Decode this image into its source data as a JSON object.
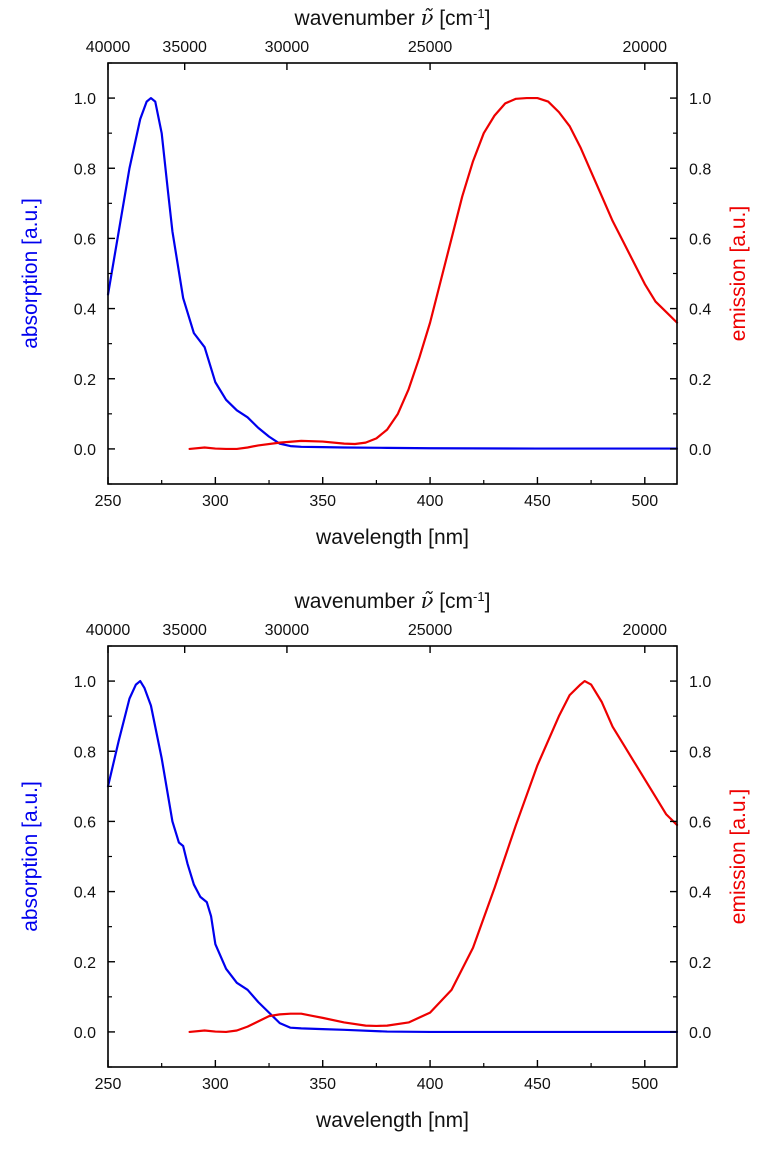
{
  "colors": {
    "absorption": "#0000ee",
    "emission": "#ee0000",
    "axis": "#000000",
    "text": "#111111"
  },
  "chart_data": [
    {
      "type": "line",
      "x_axis": {
        "label": "wavelength [nm]",
        "range": [
          250,
          515
        ],
        "ticks": [
          250,
          300,
          350,
          400,
          450,
          500
        ],
        "tick_labels": [
          "250",
          "300",
          "350",
          "400",
          "450",
          "500"
        ]
      },
      "top_axis": {
        "label_main": "wavenumber ",
        "label_symbol": "ν̃",
        "label_unit": " [cm",
        "label_exp": "-1",
        "label_close": "]",
        "ticks": [
          40000,
          35000,
          30000,
          25000,
          20000
        ],
        "tick_labels": [
          "40000",
          "35000",
          "30000",
          "25000",
          "20000"
        ]
      },
      "y_left": {
        "label": "absorption [a.u.]",
        "range": [
          -0.1,
          1.1
        ],
        "ticks": [
          0.0,
          0.2,
          0.4,
          0.6,
          0.8,
          1.0
        ],
        "tick_labels": [
          "0.0",
          "0.2",
          "0.4",
          "0.6",
          "0.8",
          "1.0"
        ]
      },
      "y_right": {
        "label": "emission [a.u.]",
        "range": [
          -0.1,
          1.1
        ],
        "ticks": [
          0.0,
          0.2,
          0.4,
          0.6,
          0.8,
          1.0
        ],
        "tick_labels": [
          "0.0",
          "0.2",
          "0.4",
          "0.6",
          "0.8",
          "1.0"
        ]
      },
      "series": [
        {
          "name": "absorption",
          "color": "#0000ee",
          "x": [
            250,
            255,
            260,
            265,
            268,
            270,
            272,
            275,
            278,
            280,
            285,
            290,
            295,
            300,
            305,
            310,
            315,
            320,
            325,
            330,
            335,
            340,
            350,
            360,
            380,
            400,
            450,
            500,
            515
          ],
          "y": [
            0.44,
            0.62,
            0.8,
            0.94,
            0.99,
            1.0,
            0.99,
            0.9,
            0.73,
            0.62,
            0.43,
            0.33,
            0.29,
            0.19,
            0.14,
            0.11,
            0.09,
            0.06,
            0.035,
            0.015,
            0.008,
            0.006,
            0.005,
            0.004,
            0.003,
            0.002,
            0.001,
            0.001,
            0.001
          ]
        },
        {
          "name": "emission",
          "color": "#ee0000",
          "x": [
            288,
            295,
            300,
            305,
            310,
            315,
            320,
            330,
            340,
            350,
            360,
            365,
            370,
            375,
            380,
            385,
            390,
            395,
            400,
            405,
            410,
            415,
            420,
            425,
            430,
            435,
            440,
            445,
            450,
            455,
            460,
            465,
            470,
            475,
            480,
            485,
            490,
            495,
            500,
            505,
            510,
            515
          ],
          "y": [
            0.0,
            0.004,
            0.001,
            0.0,
            0.0,
            0.004,
            0.01,
            0.018,
            0.023,
            0.021,
            0.015,
            0.014,
            0.018,
            0.03,
            0.055,
            0.1,
            0.17,
            0.26,
            0.36,
            0.48,
            0.6,
            0.72,
            0.82,
            0.9,
            0.95,
            0.985,
            0.998,
            1.0,
            1.0,
            0.99,
            0.96,
            0.92,
            0.86,
            0.79,
            0.72,
            0.65,
            0.59,
            0.53,
            0.47,
            0.42,
            0.39,
            0.36
          ]
        }
      ]
    },
    {
      "type": "line",
      "x_axis": {
        "label": "wavelength [nm]",
        "range": [
          250,
          515
        ],
        "ticks": [
          250,
          300,
          350,
          400,
          450,
          500
        ],
        "tick_labels": [
          "250",
          "300",
          "350",
          "400",
          "450",
          "500"
        ]
      },
      "top_axis": {
        "label_main": "wavenumber ",
        "label_symbol": "ν̃",
        "label_unit": " [cm",
        "label_exp": "-1",
        "label_close": "]",
        "ticks": [
          40000,
          35000,
          30000,
          25000,
          20000
        ],
        "tick_labels": [
          "40000",
          "35000",
          "30000",
          "25000",
          "20000"
        ]
      },
      "y_left": {
        "label": "absorption [a.u.]",
        "range": [
          -0.1,
          1.1
        ],
        "ticks": [
          0.0,
          0.2,
          0.4,
          0.6,
          0.8,
          1.0
        ],
        "tick_labels": [
          "0.0",
          "0.2",
          "0.4",
          "0.6",
          "0.8",
          "1.0"
        ]
      },
      "y_right": {
        "label": "emission [a.u.]",
        "range": [
          -0.1,
          1.1
        ],
        "ticks": [
          0.0,
          0.2,
          0.4,
          0.6,
          0.8,
          1.0
        ],
        "tick_labels": [
          "0.0",
          "0.2",
          "0.4",
          "0.6",
          "0.8",
          "1.0"
        ]
      },
      "series": [
        {
          "name": "absorption",
          "color": "#0000ee",
          "x": [
            250,
            255,
            260,
            263,
            265,
            267,
            270,
            275,
            280,
            283,
            285,
            287,
            290,
            293,
            296,
            298,
            300,
            305,
            310,
            315,
            320,
            325,
            330,
            335,
            340,
            350,
            360,
            380,
            400,
            450,
            500,
            515
          ],
          "y": [
            0.7,
            0.83,
            0.95,
            0.99,
            1.0,
            0.98,
            0.93,
            0.78,
            0.6,
            0.54,
            0.53,
            0.48,
            0.42,
            0.385,
            0.37,
            0.33,
            0.25,
            0.18,
            0.14,
            0.12,
            0.085,
            0.055,
            0.025,
            0.012,
            0.01,
            0.008,
            0.006,
            0.001,
            0.0,
            0.0,
            0.0,
            0.0
          ]
        },
        {
          "name": "emission",
          "color": "#ee0000",
          "x": [
            288,
            295,
            300,
            305,
            310,
            315,
            320,
            325,
            330,
            335,
            340,
            345,
            350,
            360,
            370,
            375,
            380,
            390,
            400,
            410,
            420,
            430,
            440,
            450,
            460,
            465,
            470,
            472,
            475,
            480,
            485,
            490,
            495,
            500,
            505,
            510,
            515
          ],
          "y": [
            0.0,
            0.004,
            0.001,
            0.0,
            0.004,
            0.015,
            0.03,
            0.045,
            0.05,
            0.052,
            0.052,
            0.046,
            0.04,
            0.027,
            0.018,
            0.017,
            0.018,
            0.027,
            0.055,
            0.12,
            0.24,
            0.41,
            0.59,
            0.76,
            0.9,
            0.96,
            0.99,
            1.0,
            0.99,
            0.94,
            0.87,
            0.82,
            0.77,
            0.72,
            0.67,
            0.62,
            0.59
          ]
        }
      ]
    }
  ]
}
